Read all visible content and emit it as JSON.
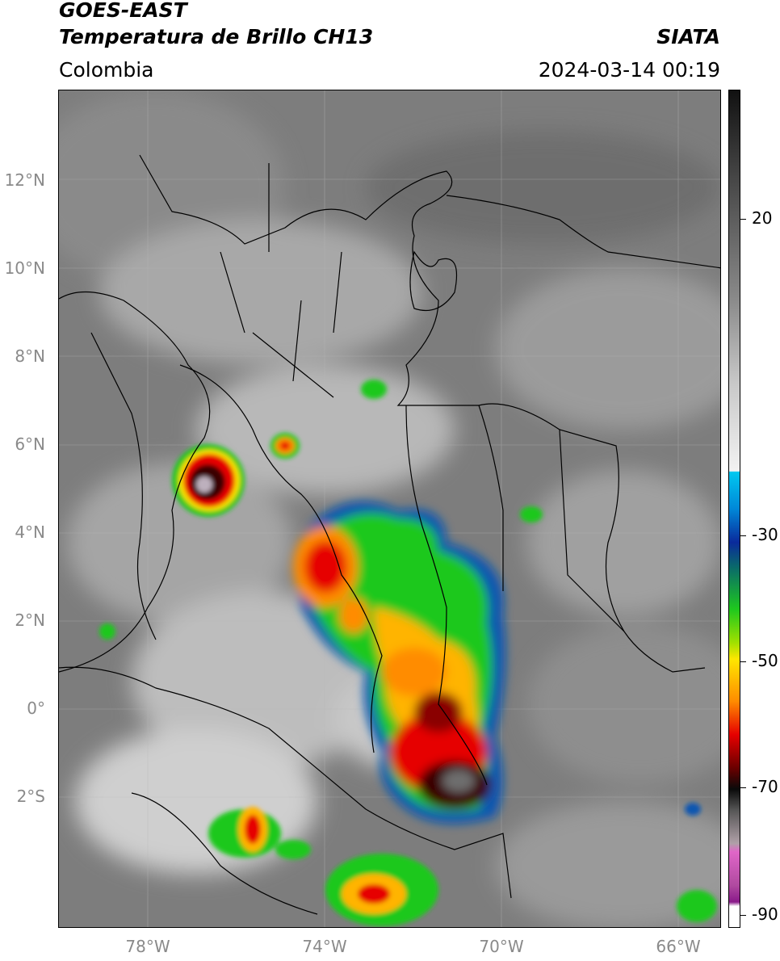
{
  "header": {
    "satellite": "GOES-EAST",
    "product": "Temperatura de Brillo CH13",
    "organization": "SIATA",
    "region": "Colombia",
    "datetime": "2024-03-14 00:19"
  },
  "map": {
    "lat_labels": [
      "12°N",
      "10°N",
      "8°N",
      "6°N",
      "4°N",
      "2°N",
      "0°",
      "2°S"
    ],
    "lon_labels": [
      "78°W",
      "74°W",
      "70°W",
      "66°W"
    ],
    "lat_values": [
      12,
      10,
      8,
      6,
      4,
      2,
      0,
      -2
    ],
    "lon_values": [
      -78,
      -74,
      -70,
      -66
    ],
    "extent": {
      "lon_min": -80,
      "lon_max": -65,
      "lat_min": -5,
      "lat_max": 14
    }
  },
  "colorbar": {
    "ticks": [
      "20",
      "-30",
      "-50",
      "-70",
      "-90"
    ],
    "tick_values": [
      20,
      -30,
      -50,
      -70,
      -90
    ],
    "range": [
      -92,
      36
    ],
    "colors": {
      "warm_top": "#111111",
      "gray_mid": "#9a9a9a",
      "white": "#f2f2f2",
      "cyan": "#00c8f0",
      "blue": "#0a2a9c",
      "green": "#1ec81e",
      "yellow": "#ffe600",
      "orange": "#ff8c00",
      "red": "#e60000",
      "dark_red": "#6a0000",
      "black": "#0a0a0a",
      "pink": "#e066c8",
      "purple": "#8a1a8a"
    }
  }
}
